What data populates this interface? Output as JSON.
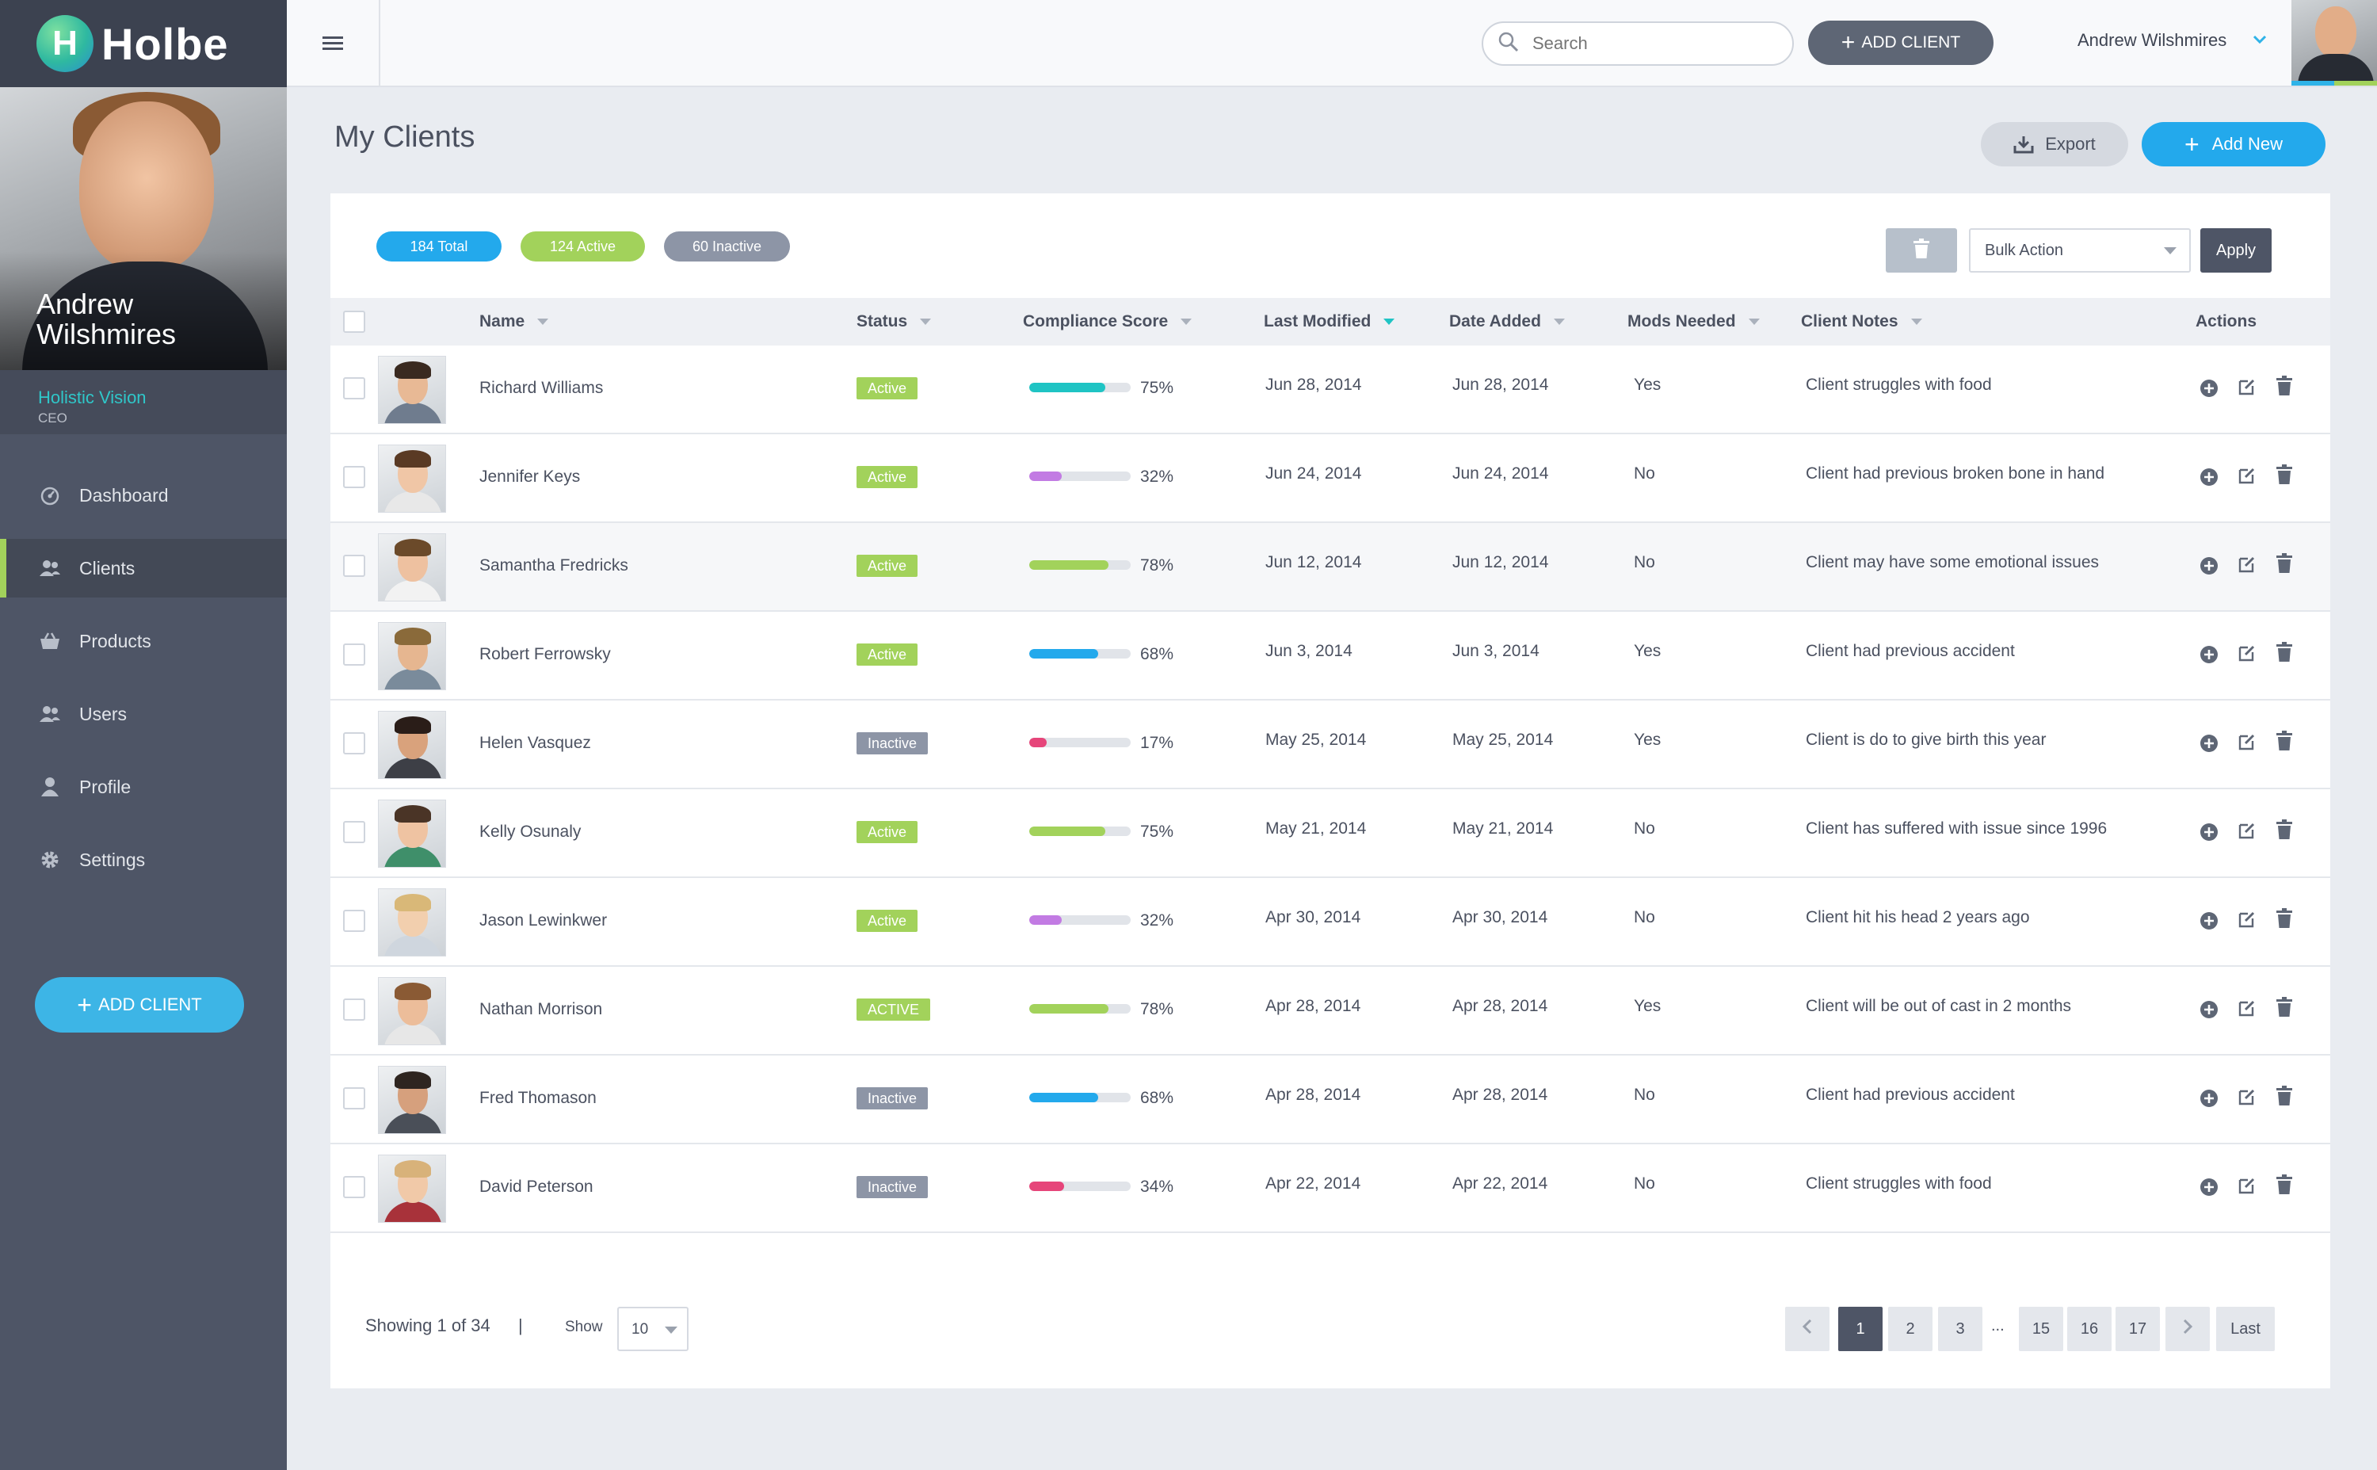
{
  "app": {
    "logo_letter": "H",
    "name": "Holbe"
  },
  "sidebar": {
    "user_name": "Andrew Wilshmires",
    "company": "Holistic Vision",
    "role": "CEO",
    "nav": [
      {
        "label": "Dashboard",
        "icon": "dashboard-icon"
      },
      {
        "label": "Clients",
        "icon": "clients-icon",
        "active": true
      },
      {
        "label": "Products",
        "icon": "basket-icon"
      },
      {
        "label": "Users",
        "icon": "users-icon"
      },
      {
        "label": "Profile",
        "icon": "profile-icon"
      },
      {
        "label": "Settings",
        "icon": "gear-icon"
      }
    ],
    "add_client_label": "ADD CLIENT"
  },
  "topbar": {
    "search_placeholder": "Search",
    "add_client_label": "ADD CLIENT",
    "user_name": "Andrew Wilshmires"
  },
  "page": {
    "title": "My Clients",
    "export_label": "Export",
    "add_new_label": "Add New"
  },
  "filters": {
    "total": "184 Total",
    "active": "124 Active",
    "inactive": "60 Inactive"
  },
  "bulk": {
    "select_value": "Bulk Action",
    "apply_label": "Apply"
  },
  "table": {
    "headers": {
      "name": "Name",
      "status": "Status",
      "compliance": "Compliance Score",
      "modified": "Last Modified",
      "added": "Date Added",
      "mods": "Mods Needed",
      "notes": "Client Notes",
      "actions": "Actions"
    },
    "sorted_by": "Last Modified",
    "rows": [
      {
        "name": "Richard Williams",
        "status": "Active",
        "score": 75,
        "score_label": "75%",
        "bar_color": "#1fc4c4",
        "modified": "Jun 28, 2014",
        "added": "Jun 28, 2014",
        "mods": "Yes",
        "notes": "Client struggles with food"
      },
      {
        "name": "Jennifer Keys",
        "status": "Active",
        "score": 32,
        "score_label": "32%",
        "bar_color": "#c27be3",
        "modified": "Jun 24, 2014",
        "added": "Jun 24, 2014",
        "mods": "No",
        "notes": "Client had previous broken bone in hand"
      },
      {
        "name": "Samantha Fredricks",
        "status": "Active",
        "score": 78,
        "score_label": "78%",
        "bar_color": "#a2d25b",
        "modified": "Jun 12, 2014",
        "added": "Jun 12, 2014",
        "mods": "No",
        "notes": "Client may have some emotional issues"
      },
      {
        "name": "Robert Ferrowsky",
        "status": "Active",
        "score": 68,
        "score_label": "68%",
        "bar_color": "#23a9ec",
        "modified": "Jun 3, 2014",
        "added": "Jun 3, 2014",
        "mods": "Yes",
        "notes": "Client had previous accident"
      },
      {
        "name": "Helen Vasquez",
        "status": "Inactive",
        "score": 17,
        "score_label": "17%",
        "bar_color": "#e6457a",
        "modified": "May 25, 2014",
        "added": "May 25, 2014",
        "mods": "Yes",
        "notes": "Client is do to give birth this year"
      },
      {
        "name": "Kelly Osunaly",
        "status": "Active",
        "score": 75,
        "score_label": "75%",
        "bar_color": "#a2d25b",
        "modified": "May 21, 2014",
        "added": "May 21, 2014",
        "mods": "No",
        "notes": "Client has suffered with issue since 1996"
      },
      {
        "name": "Jason Lewinkwer",
        "status": "Active",
        "score": 32,
        "score_label": "32%",
        "bar_color": "#c27be3",
        "modified": "Apr 30, 2014",
        "added": "Apr 30, 2014",
        "mods": "No",
        "notes": "Client hit his head 2 years ago"
      },
      {
        "name": "Nathan Morrison",
        "status": "ACTIVE",
        "score": 78,
        "score_label": "78%",
        "bar_color": "#a2d25b",
        "modified": "Apr 28, 2014",
        "added": "Apr 28, 2014",
        "mods": "Yes",
        "notes": "Client will be out of cast in 2 months"
      },
      {
        "name": "Fred Thomason",
        "status": "Inactive",
        "score": 68,
        "score_label": "68%",
        "bar_color": "#23a9ec",
        "modified": "Apr 28, 2014",
        "added": "Apr 28, 2014",
        "mods": "No",
        "notes": "Client had previous accident"
      },
      {
        "name": "David Peterson",
        "status": "Inactive",
        "score": 34,
        "score_label": "34%",
        "bar_color": "#e6457a",
        "modified": "Apr 22, 2014",
        "added": "Apr 22, 2014",
        "mods": "No",
        "notes": "Client struggles with food"
      }
    ]
  },
  "footer": {
    "showing": "Showing 1 of 34",
    "separator": "|",
    "show_label": "Show",
    "page_size": "10",
    "pages": [
      "1",
      "2",
      "3",
      "15",
      "16",
      "17"
    ],
    "current_page": "1",
    "ellipsis": "...",
    "last_label": "Last"
  },
  "colors": {
    "sidebar_bg": "#4e5566",
    "accent_blue": "#23a9ec",
    "accent_green": "#a2d25b",
    "accent_teal": "#1fc4c4",
    "inactive_gray": "#8d95a6"
  }
}
